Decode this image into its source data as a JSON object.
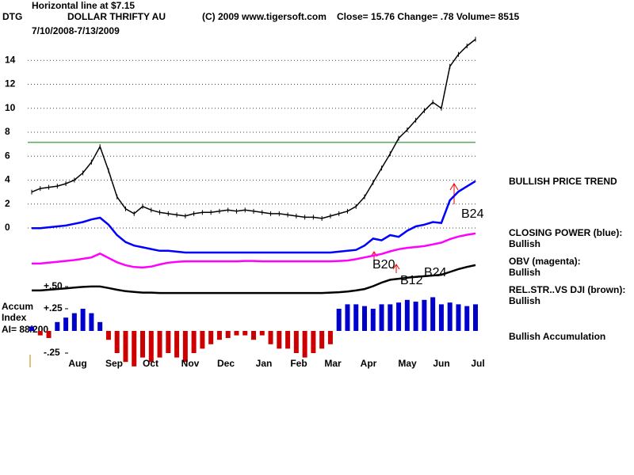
{
  "chart_data": {
    "type": "line",
    "hline_label": "Horizontal line at $7.15",
    "symbol": "DTG",
    "name": "DOLLAR THRIFTY AU",
    "copyright": "(C) 2009 www.tigersoft.com",
    "quote": "Close=  15.76  Change= .78 Volume= 8515",
    "date_range": "7/10/2008-7/13/2009",
    "categories": [
      "Aug",
      "Sep",
      "Oct",
      "Nov",
      "Dec",
      "Jan",
      "Feb",
      "Mar",
      "Apr",
      "May",
      "Jun",
      "Jul"
    ],
    "price": {
      "color": "#000000",
      "values": [
        3.0,
        3.3,
        3.4,
        3.5,
        3.7,
        4.0,
        4.6,
        5.5,
        6.8,
        4.8,
        2.6,
        1.6,
        1.2,
        1.8,
        1.5,
        1.3,
        1.2,
        1.1,
        1.0,
        1.2,
        1.3,
        1.3,
        1.4,
        1.5,
        1.4,
        1.5,
        1.4,
        1.3,
        1.2,
        1.2,
        1.1,
        1.0,
        0.9,
        0.9,
        0.8,
        1.0,
        1.2,
        1.4,
        1.8,
        2.6,
        3.8,
        5.0,
        6.2,
        7.5,
        8.2,
        9.0,
        9.8,
        10.5,
        10.0,
        13.5,
        14.5,
        15.2,
        15.76
      ],
      "ylim": [
        0,
        16
      ],
      "yticks": [
        0,
        2,
        4,
        6,
        8,
        10,
        12,
        14
      ],
      "hline": 7.15,
      "hline_color": "#008000",
      "grid": true,
      "status": "BULLISH PRICE TREND"
    },
    "indicators": [
      {
        "name": "CLOSING POWER (blue):",
        "status": "Bullish",
        "color": "#0000ff",
        "ylim": [
          0,
          100
        ],
        "values": [
          38,
          38,
          39,
          40,
          41,
          43,
          45,
          48,
          50,
          42,
          30,
          22,
          18,
          16,
          14,
          12,
          12,
          11,
          10,
          10,
          10,
          10,
          10,
          10,
          10,
          10,
          10,
          10,
          10,
          10,
          10,
          10,
          10,
          10,
          10,
          10,
          11,
          12,
          13,
          18,
          26,
          24,
          30,
          28,
          35,
          40,
          42,
          45,
          44,
          70,
          80,
          86,
          92
        ]
      },
      {
        "name": "OBV (magenta):",
        "status": "Bullish",
        "color": "#ff00ff",
        "ylim": [
          0,
          100
        ],
        "values": [
          22,
          22,
          24,
          26,
          28,
          30,
          33,
          36,
          45,
          35,
          25,
          18,
          14,
          13,
          15,
          20,
          24,
          26,
          27,
          27,
          27,
          27,
          27,
          27,
          27,
          28,
          28,
          27,
          27,
          27,
          27,
          27,
          27,
          27,
          27,
          27,
          28,
          29,
          32,
          36,
          40,
          44,
          50,
          55,
          58,
          60,
          62,
          66,
          70,
          78,
          84,
          88,
          91
        ]
      },
      {
        "name": "REL.STR..VS DJI (brown):",
        "status": "Bullish",
        "color": "#000000",
        "ylim": [
          0,
          100
        ],
        "values": [
          18,
          18,
          20,
          22,
          24,
          26,
          28,
          29,
          29,
          25,
          20,
          16,
          14,
          12,
          12,
          11,
          11,
          11,
          11,
          11,
          11,
          11,
          11,
          11,
          11,
          11,
          11,
          11,
          11,
          11,
          11,
          11,
          11,
          11,
          11,
          12,
          13,
          15,
          18,
          22,
          30,
          40,
          48,
          51,
          54,
          56,
          58,
          60,
          62,
          70,
          78,
          84,
          89
        ]
      }
    ],
    "accumulation": {
      "label_lines": [
        "Accum",
        "Index"
      ],
      "reading": "AI= 88/200",
      "status": "Bullish Accumulation",
      "positive_color": "#0000cc",
      "negative_color": "#cc0000",
      "ylim": [
        -0.5,
        0.5
      ],
      "yticks": [
        {
          "value": 0.5,
          "label": "+.50"
        },
        {
          "value": 0.25,
          "label": "+.25"
        },
        {
          "value": -0.25,
          "label": "-.25"
        }
      ],
      "values": [
        0.05,
        -0.05,
        -0.08,
        0.1,
        0.15,
        0.2,
        0.25,
        0.2,
        0.1,
        -0.1,
        -0.25,
        -0.35,
        -0.4,
        -0.3,
        -0.35,
        -0.3,
        -0.25,
        -0.3,
        -0.35,
        -0.25,
        -0.2,
        -0.15,
        -0.1,
        -0.08,
        -0.05,
        -0.05,
        -0.1,
        -0.05,
        -0.15,
        -0.2,
        -0.2,
        -0.25,
        -0.3,
        -0.25,
        -0.2,
        -0.15,
        0.25,
        0.3,
        0.3,
        0.28,
        0.25,
        0.3,
        0.3,
        0.32,
        0.35,
        0.33,
        0.35,
        0.38,
        0.3,
        0.32,
        0.3,
        0.28,
        0.3
      ]
    },
    "annotations": [
      "B24",
      "B20",
      "B12",
      "B24"
    ]
  }
}
